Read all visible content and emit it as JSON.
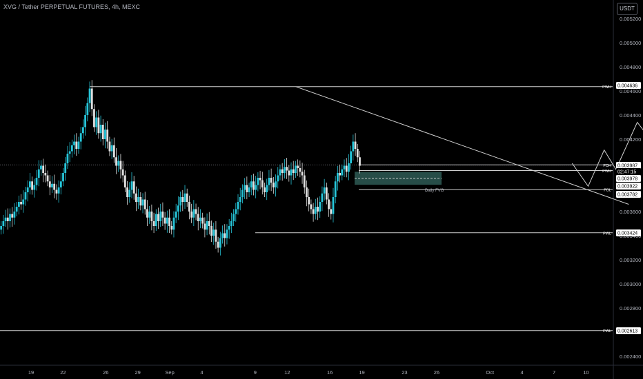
{
  "header": {
    "title": "XVG / Tether PERPETUAL FUTURES, 4h, MEXC",
    "currency_button": "USDT"
  },
  "colors": {
    "background": "#000000",
    "candle_up": "#26c6da",
    "candle_down": "#e0e0e0",
    "lines": "#d0d0d0",
    "fvg_fill": "#2e5a55"
  },
  "chart_data": {
    "type": "candlestick",
    "ylim": [
      0.00232,
      0.00532
    ],
    "y_ticks": [
      "0.005200",
      "0.005000",
      "0.004800",
      "0.004600",
      "0.004400",
      "0.004200",
      "0.004000",
      "0.003800",
      "0.003600",
      "0.003400",
      "0.003200",
      "0.003000",
      "0.002800",
      "0.002600",
      "0.002400"
    ],
    "x_ticks": [
      "19",
      "22",
      "26",
      "29",
      "Sep",
      "4",
      "9",
      "12",
      "16",
      "19",
      "23",
      "26",
      "Oct",
      "4",
      "7",
      "10"
    ],
    "levels": [
      {
        "label": "PWH",
        "value": 0.004636
      },
      {
        "label": "PDH",
        "value": 0.003987
      },
      {
        "label": "PWH",
        "value": 0.00394
      },
      {
        "label": "PDL",
        "value": 0.003782
      },
      {
        "label": "PWL",
        "value": 0.003424
      },
      {
        "label": "PWL",
        "value": 0.002613
      }
    ],
    "price_tags": [
      "0.004636",
      "0.003987",
      "02:47:15",
      "0.003978",
      "0.003922",
      "0.003782",
      "0.003424",
      "0.002613"
    ],
    "annotations": [
      {
        "text": "Daily FVG"
      }
    ],
    "fvg": {
      "top": 0.00393,
      "bottom": 0.003822,
      "mid": 0.003876
    },
    "close_guide": 0.003987,
    "trendline": [
      {
        "day": 24.8,
        "price": 0.004636
      },
      {
        "day": 56,
        "price": 0.00366
      }
    ],
    "projection": [
      {
        "day": 50.7,
        "price": 0.004
      },
      {
        "day": 52.2,
        "price": 0.00381
      },
      {
        "day": 53.7,
        "price": 0.00411
      },
      {
        "day": 54.8,
        "price": 0.00395
      },
      {
        "day": 56.8,
        "price": 0.00434
      },
      {
        "day": 58.3,
        "price": 0.00417
      },
      {
        "day": 60.7,
        "price": 0.004636
      }
    ],
    "closes": [
      0.00348,
      0.00352,
      0.00355,
      0.00352,
      0.00358,
      0.00355,
      0.0036,
      0.00364,
      0.00368,
      0.00366,
      0.0037,
      0.00376,
      0.0038,
      0.00385,
      0.00378,
      0.00382,
      0.00388,
      0.00395,
      0.00398,
      0.00392,
      0.0039,
      0.00385,
      0.0038,
      0.00383,
      0.00378,
      0.00375,
      0.0038,
      0.00385,
      0.00392,
      0.004,
      0.00408,
      0.0041,
      0.00415,
      0.00418,
      0.00412,
      0.00418,
      0.00425,
      0.0043,
      0.0044,
      0.0045,
      0.00462,
      0.00445,
      0.0043,
      0.00438,
      0.00425,
      0.00432,
      0.0042,
      0.00428,
      0.00418,
      0.0041,
      0.00415,
      0.00405,
      0.00398,
      0.00402,
      0.00395,
      0.0039,
      0.0038,
      0.00372,
      0.00378,
      0.00385,
      0.00375,
      0.00368,
      0.00372,
      0.00365,
      0.0037,
      0.00362,
      0.00355,
      0.0036,
      0.00352,
      0.00348,
      0.00358,
      0.00352,
      0.0036,
      0.00355,
      0.0035,
      0.00355,
      0.00348,
      0.00345,
      0.00355,
      0.0036,
      0.00365,
      0.00372,
      0.00368,
      0.00375,
      0.00368,
      0.0036,
      0.00355,
      0.00362,
      0.00358,
      0.00352,
      0.00355,
      0.0035,
      0.00345,
      0.00352,
      0.00348,
      0.0034,
      0.00345,
      0.00335,
      0.0033,
      0.00338,
      0.00342,
      0.00338,
      0.00345,
      0.00348,
      0.00352,
      0.00358,
      0.00362,
      0.00368,
      0.00372,
      0.00378,
      0.00382,
      0.00376,
      0.0038,
      0.00385,
      0.00378,
      0.00382,
      0.00388,
      0.00386,
      0.0038,
      0.00376,
      0.00382,
      0.00388,
      0.00384,
      0.0038,
      0.00385,
      0.0039,
      0.00395,
      0.00392,
      0.00397,
      0.00394,
      0.0039,
      0.00395,
      0.00392,
      0.00398,
      0.00396,
      0.00393,
      0.0039,
      0.0038,
      0.00372,
      0.00366,
      0.00362,
      0.00358,
      0.00364,
      0.0036,
      0.00368,
      0.00375,
      0.0038,
      0.0037,
      0.00362,
      0.00358,
      0.00372,
      0.00385,
      0.00392,
      0.0039,
      0.00395,
      0.00398,
      0.00393,
      0.004,
      0.0041,
      0.00418,
      0.00412,
      0.00405,
      0.00398
    ]
  }
}
